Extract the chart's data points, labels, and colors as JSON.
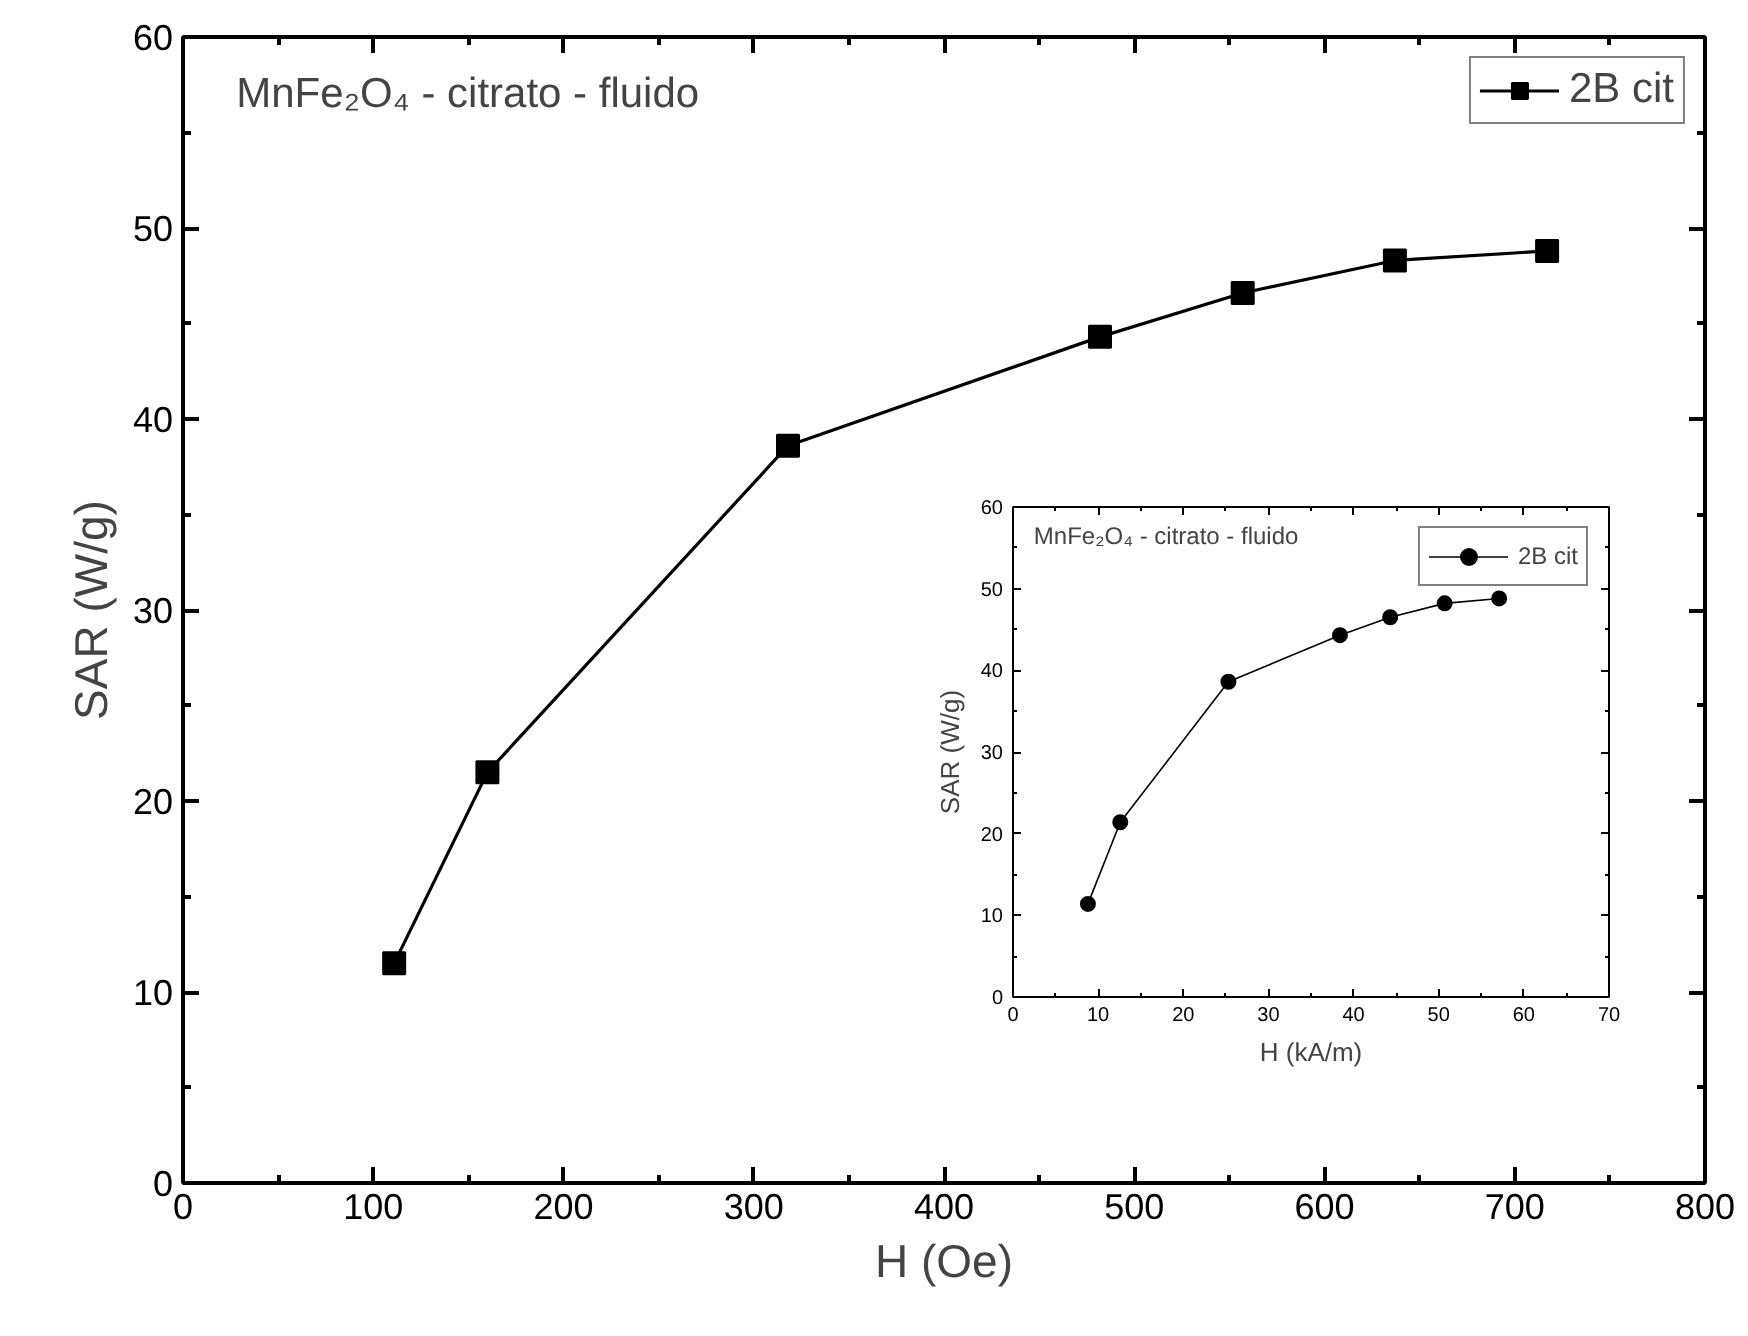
{
  "chart_data": [
    {
      "type": "line",
      "title": "MnFe₂O₄ - citrato - fluido",
      "xlabel": "H (Oe)",
      "ylabel": "SAR (W/g)",
      "x": [
        111,
        160,
        318,
        482,
        557,
        637,
        717
      ],
      "series": [
        {
          "name": "2B cit",
          "color": "#000000",
          "values": [
            11.5,
            21.5,
            38.6,
            44.3,
            46.6,
            48.3,
            48.8
          ]
        }
      ],
      "xlim": [
        0,
        800
      ],
      "xticks": [
        0,
        100,
        200,
        300,
        400,
        500,
        600,
        700,
        800
      ],
      "ylim": [
        0,
        60
      ],
      "yticks": [
        0,
        10,
        20,
        30,
        40,
        50,
        60
      ],
      "grid": false,
      "legend": "top right",
      "marker": "square",
      "line_style": "solid"
    },
    {
      "type": "line",
      "title": "MnFe₂O₄ - citrato - fluido",
      "xlabel": "H (kA/m)",
      "ylabel": "SAR (W/g)",
      "x": [
        8.8,
        12.6,
        25.3,
        38.4,
        44.3,
        50.7,
        57.1
      ],
      "series": [
        {
          "name": "2B cit",
          "color": "#000000",
          "values": [
            11.4,
            21.4,
            38.6,
            44.3,
            46.5,
            48.2,
            48.8
          ]
        }
      ],
      "xlim": [
        0,
        70
      ],
      "xticks": [
        0,
        10,
        20,
        30,
        40,
        50,
        60,
        70
      ],
      "ylim": [
        0,
        60
      ],
      "yticks": [
        0,
        10,
        20,
        30,
        40,
        50,
        60
      ],
      "grid": false,
      "legend": "top right",
      "marker": "circle",
      "line_style": "solid"
    }
  ]
}
